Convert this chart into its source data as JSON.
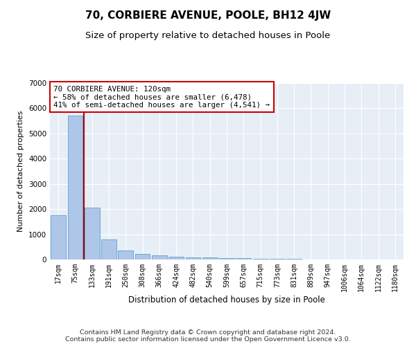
{
  "title": "70, CORBIERE AVENUE, POOLE, BH12 4JW",
  "subtitle": "Size of property relative to detached houses in Poole",
  "xlabel": "Distribution of detached houses by size in Poole",
  "ylabel": "Number of detached properties",
  "categories": [
    "17sqm",
    "75sqm",
    "133sqm",
    "191sqm",
    "250sqm",
    "308sqm",
    "366sqm",
    "424sqm",
    "482sqm",
    "540sqm",
    "599sqm",
    "657sqm",
    "715sqm",
    "773sqm",
    "831sqm",
    "889sqm",
    "947sqm",
    "1006sqm",
    "1064sqm",
    "1122sqm",
    "1180sqm"
  ],
  "values": [
    1750,
    5700,
    2050,
    800,
    370,
    230,
    175,
    105,
    85,
    70,
    60,
    50,
    40,
    25,
    15,
    10,
    8,
    5,
    3,
    2,
    1
  ],
  "bar_color": "#aec6e8",
  "bar_edge_color": "#6aaad4",
  "vline_color": "#aa0000",
  "annotation_text": "70 CORBIERE AVENUE: 120sqm\n← 58% of detached houses are smaller (6,478)\n41% of semi-detached houses are larger (4,541) →",
  "annotation_box_color": "#ffffff",
  "annotation_box_edge_color": "#cc0000",
  "ylim": [
    0,
    7000
  ],
  "yticks": [
    0,
    1000,
    2000,
    3000,
    4000,
    5000,
    6000,
    7000
  ],
  "footer_line1": "Contains HM Land Registry data © Crown copyright and database right 2024.",
  "footer_line2": "Contains public sector information licensed under the Open Government Licence v3.0.",
  "background_color": "#ffffff",
  "plot_bg_color": "#e8eef6",
  "grid_color": "#ffffff",
  "title_fontsize": 11,
  "subtitle_fontsize": 9.5,
  "ylabel_fontsize": 8,
  "xlabel_fontsize": 8.5,
  "tick_fontsize": 7,
  "annotation_fontsize": 7.8,
  "footer_fontsize": 6.8
}
